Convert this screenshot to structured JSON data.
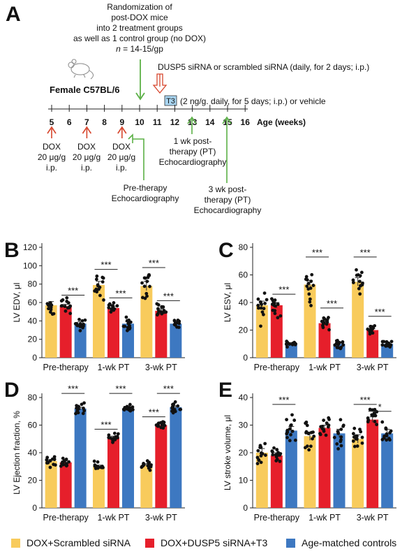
{
  "colors": {
    "scrambled": "#F8CB5C",
    "dusp5": "#E61F2B",
    "controls": "#3D78C1",
    "dox_arrow": "#D6452C",
    "echo_arrow": "#5BB046",
    "t3_box": "#A9D6F2"
  },
  "panel_a": {
    "letter": "A",
    "randomization_lines": [
      "Randomization of",
      "post-DOX mice",
      "into 2 treatment groups",
      "as well as 1 control group (no DOX)"
    ],
    "n_prefix": "n",
    "n_suffix": " = 14-15/gp",
    "mouse_icon": "mouse-icon",
    "mouse_label": "Female C57BL/6",
    "sirna_label": "DUSP5 siRNA or scrambled siRNA (daily, for 2 days; i.p.)",
    "t3_box_label": "T3",
    "t3_label": "(2 ng/g. daily, for 5 days; i.p.) or vehicle",
    "weeks": [
      "5",
      "6",
      "7",
      "8",
      "9",
      "10",
      "11",
      "12",
      "13",
      "14",
      "15",
      "16"
    ],
    "axis_label": "Age (weeks)",
    "dox_lines": [
      "DOX",
      "20 μg/g",
      "i.p."
    ],
    "pretherapy_lines": [
      "Pre-therapy",
      "Echocardiography"
    ],
    "one_wk_lines": [
      "1 wk post-",
      "therapy (PT)",
      "Echocardiography"
    ],
    "three_wk_lines": [
      "3 wk post-",
      "therapy (PT)",
      "Echocardiography"
    ]
  },
  "legend": [
    {
      "label": "DOX+Scrambled siRNA"
    },
    {
      "label": "DOX+DUSP5 siRNA+T3"
    },
    {
      "label": "Age-matched controls"
    }
  ],
  "chart_data": [
    {
      "panel": "B",
      "type": "bar",
      "ylabel": "LV EDV, μl",
      "ylim": [
        0,
        120
      ],
      "yticks": [
        0,
        20,
        40,
        60,
        80,
        100,
        120
      ],
      "categories": [
        "Pre-therapy",
        "1-wk PT",
        "3-wk PT"
      ],
      "series": [
        {
          "name": "DOX+Scrambled siRNA",
          "values": [
            57,
            79,
            78
          ],
          "errors": [
            4,
            4,
            5
          ]
        },
        {
          "name": "DOX+DUSP5 siRNA+T3",
          "values": [
            56,
            54,
            51
          ],
          "errors": [
            2,
            2,
            2
          ]
        },
        {
          "name": "Age-matched controls",
          "values": [
            37,
            37,
            37
          ],
          "errors": [
            2,
            2,
            2
          ]
        }
      ],
      "significance": [
        {
          "group": 0,
          "from": 1,
          "to": 2,
          "y": 68,
          "label": "***"
        },
        {
          "group": 1,
          "from": 0,
          "to": 1,
          "y": 96,
          "label": "***"
        },
        {
          "group": 1,
          "from": 1,
          "to": 2,
          "y": 65,
          "label": "***"
        },
        {
          "group": 2,
          "from": 0,
          "to": 1,
          "y": 98,
          "label": "***"
        },
        {
          "group": 2,
          "from": 1,
          "to": 2,
          "y": 62,
          "label": "***"
        }
      ]
    },
    {
      "panel": "C",
      "type": "bar",
      "ylabel": "LV ESV, μl",
      "ylim": [
        0,
        80
      ],
      "yticks": [
        0,
        20,
        40,
        60,
        80
      ],
      "categories": [
        "Pre-therapy",
        "1-wk PT",
        "3-wk PT"
      ],
      "series": [
        {
          "name": "DOX+Scrambled siRNA",
          "values": [
            38,
            53,
            55
          ],
          "errors": [
            3,
            3,
            3
          ]
        },
        {
          "name": "DOX+DUSP5 siRNA+T3",
          "values": [
            38,
            25,
            20
          ],
          "errors": [
            2,
            1,
            1
          ]
        },
        {
          "name": "Age-matched controls",
          "values": [
            10,
            10,
            10
          ],
          "errors": [
            1,
            1,
            1
          ]
        }
      ],
      "significance": [
        {
          "group": 0,
          "from": 1,
          "to": 2,
          "y": 46,
          "label": "***"
        },
        {
          "group": 1,
          "from": 0,
          "to": 1,
          "y": 73,
          "label": "***"
        },
        {
          "group": 1,
          "from": 1,
          "to": 2,
          "y": 36,
          "label": "***"
        },
        {
          "group": 2,
          "from": 0,
          "to": 1,
          "y": 73,
          "label": "***"
        },
        {
          "group": 2,
          "from": 1,
          "to": 2,
          "y": 30,
          "label": "***"
        }
      ]
    },
    {
      "panel": "D",
      "type": "bar",
      "ylabel": "LV Ejection fraction, %",
      "ylim": [
        0,
        80
      ],
      "yticks": [
        0,
        20,
        40,
        60,
        80
      ],
      "categories": [
        "Pre-therapy",
        "1-wk PT",
        "3-wk PT"
      ],
      "series": [
        {
          "name": "DOX+Scrambled siRNA",
          "values": [
            34,
            30,
            31
          ],
          "errors": [
            1,
            1,
            1
          ]
        },
        {
          "name": "DOX+DUSP5 siRNA+T3",
          "values": [
            33,
            51,
            60
          ],
          "errors": [
            1,
            1,
            1
          ]
        },
        {
          "name": "Age-matched controls",
          "values": [
            72,
            72,
            73
          ],
          "errors": [
            1,
            1,
            1
          ]
        }
      ],
      "significance": [
        {
          "group": 0,
          "from": 1,
          "to": 2,
          "y": 83,
          "label": "***"
        },
        {
          "group": 1,
          "from": 0,
          "to": 1,
          "y": 57,
          "label": "***"
        },
        {
          "group": 1,
          "from": 1,
          "to": 2,
          "y": 83,
          "label": "***"
        },
        {
          "group": 2,
          "from": 0,
          "to": 1,
          "y": 66,
          "label": "***"
        },
        {
          "group": 2,
          "from": 1,
          "to": 2,
          "y": 83,
          "label": "***"
        }
      ]
    },
    {
      "panel": "E",
      "type": "bar",
      "ylabel": "LV stroke volume, μl",
      "ylim": [
        0,
        40
      ],
      "yticks": [
        0,
        10,
        20,
        30,
        40
      ],
      "categories": [
        "Pre-therapy",
        "1-wk PT",
        "3-wk PT"
      ],
      "series": [
        {
          "name": "DOX+Scrambled siRNA",
          "values": [
            20,
            26,
            25
          ],
          "errors": [
            1.5,
            1.5,
            1.5
          ]
        },
        {
          "name": "DOX+DUSP5 siRNA+T3",
          "values": [
            19,
            29,
            32
          ],
          "errors": [
            1,
            1,
            1
          ]
        },
        {
          "name": "Age-matched controls",
          "values": [
            28,
            27,
            27
          ],
          "errors": [
            1.5,
            1.5,
            1.5
          ]
        }
      ],
      "significance": [
        {
          "group": 0,
          "from": 1,
          "to": 2,
          "y": 37.5,
          "label": "***"
        },
        {
          "group": 2,
          "from": 0,
          "to": 1,
          "y": 37.5,
          "label": "***"
        },
        {
          "group": 2,
          "from": 1,
          "to": 2,
          "y": 35,
          "label": "*"
        }
      ]
    }
  ]
}
